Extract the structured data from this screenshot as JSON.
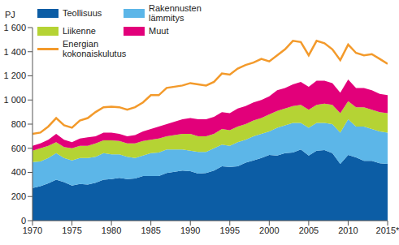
{
  "chart_data": {
    "type": "area",
    "stacked": true,
    "y_label": "PJ",
    "legend": "upper left",
    "grid": false,
    "x": [
      1970,
      1971,
      1972,
      1973,
      1974,
      1975,
      1976,
      1977,
      1978,
      1979,
      1980,
      1981,
      1982,
      1983,
      1984,
      1985,
      1986,
      1987,
      1988,
      1989,
      1990,
      1991,
      1992,
      1993,
      1994,
      1995,
      1996,
      1997,
      1998,
      1999,
      2000,
      2001,
      2002,
      2003,
      2004,
      2005,
      2006,
      2007,
      2008,
      2009,
      2010,
      2011,
      2012,
      2013,
      2014,
      2015
    ],
    "xlim": [
      1970,
      2015
    ],
    "xticks": [
      1970,
      1975,
      1980,
      1985,
      1990,
      1995,
      2000,
      2005,
      2010,
      {
        "value": 2015,
        "label": "2015*"
      }
    ],
    "ylim": [
      0,
      1600
    ],
    "yticks": [
      0,
      200,
      400,
      600,
      800,
      {
        "value": 1000,
        "label": "1 000"
      },
      {
        "value": 1200,
        "label": "1 200"
      },
      {
        "value": 1400,
        "label": "1 400"
      },
      {
        "value": 1600,
        "label": "1 600"
      }
    ],
    "series": [
      {
        "name": "Teollisuus",
        "type": "area",
        "color": "#0c5da5",
        "values": [
          270,
          285,
          310,
          340,
          320,
          290,
          305,
          300,
          315,
          340,
          345,
          355,
          345,
          350,
          370,
          370,
          370,
          395,
          405,
          415,
          410,
          390,
          395,
          415,
          450,
          445,
          450,
          480,
          500,
          520,
          545,
          540,
          560,
          565,
          590,
          540,
          580,
          585,
          560,
          470,
          545,
          525,
          495,
          495,
          475,
          470
        ]
      },
      {
        "name": "Rakennusten lämmitys",
        "type": "area",
        "color": "#5cb6e8",
        "values": [
          215,
          205,
          210,
          220,
          200,
          210,
          215,
          220,
          215,
          220,
          205,
          195,
          185,
          170,
          170,
          190,
          195,
          195,
          185,
          175,
          170,
          180,
          175,
          185,
          180,
          175,
          200,
          190,
          200,
          200,
          195,
          230,
          230,
          245,
          220,
          230,
          230,
          225,
          240,
          260,
          295,
          255,
          285,
          265,
          265,
          260
        ]
      },
      {
        "name": "Liikenne",
        "type": "area",
        "color": "#b5d334",
        "values": [
          95,
          110,
          100,
          90,
          90,
          100,
          100,
          100,
          110,
          105,
          115,
          110,
          110,
          120,
          120,
          110,
          115,
          110,
          120,
          130,
          140,
          130,
          130,
          120,
          130,
          130,
          130,
          130,
          130,
          130,
          140,
          140,
          140,
          140,
          150,
          150,
          150,
          160,
          160,
          160,
          150,
          160,
          160,
          160,
          160,
          160
        ]
      },
      {
        "name": "Muut",
        "type": "area",
        "color": "#e2007a",
        "values": [
          40,
          40,
          50,
          70,
          60,
          50,
          60,
          70,
          60,
          65,
          65,
          60,
          60,
          70,
          80,
          90,
          100,
          100,
          110,
          120,
          130,
          140,
          140,
          140,
          140,
          140,
          150,
          150,
          150,
          150,
          150,
          170,
          170,
          180,
          190,
          190,
          200,
          190,
          180,
          170,
          180,
          160,
          160,
          160,
          150,
          150
        ]
      },
      {
        "name": "Energian kokonaiskulutus",
        "type": "line",
        "color": "#f39a2b",
        "values": [
          720,
          730,
          780,
          850,
          790,
          770,
          830,
          850,
          900,
          940,
          945,
          940,
          920,
          940,
          980,
          1040,
          1040,
          1100,
          1110,
          1120,
          1140,
          1130,
          1120,
          1150,
          1220,
          1210,
          1260,
          1290,
          1310,
          1340,
          1320,
          1370,
          1420,
          1490,
          1480,
          1370,
          1490,
          1470,
          1420,
          1330,
          1460,
          1390,
          1370,
          1380,
          1340,
          1300
        ]
      }
    ]
  }
}
